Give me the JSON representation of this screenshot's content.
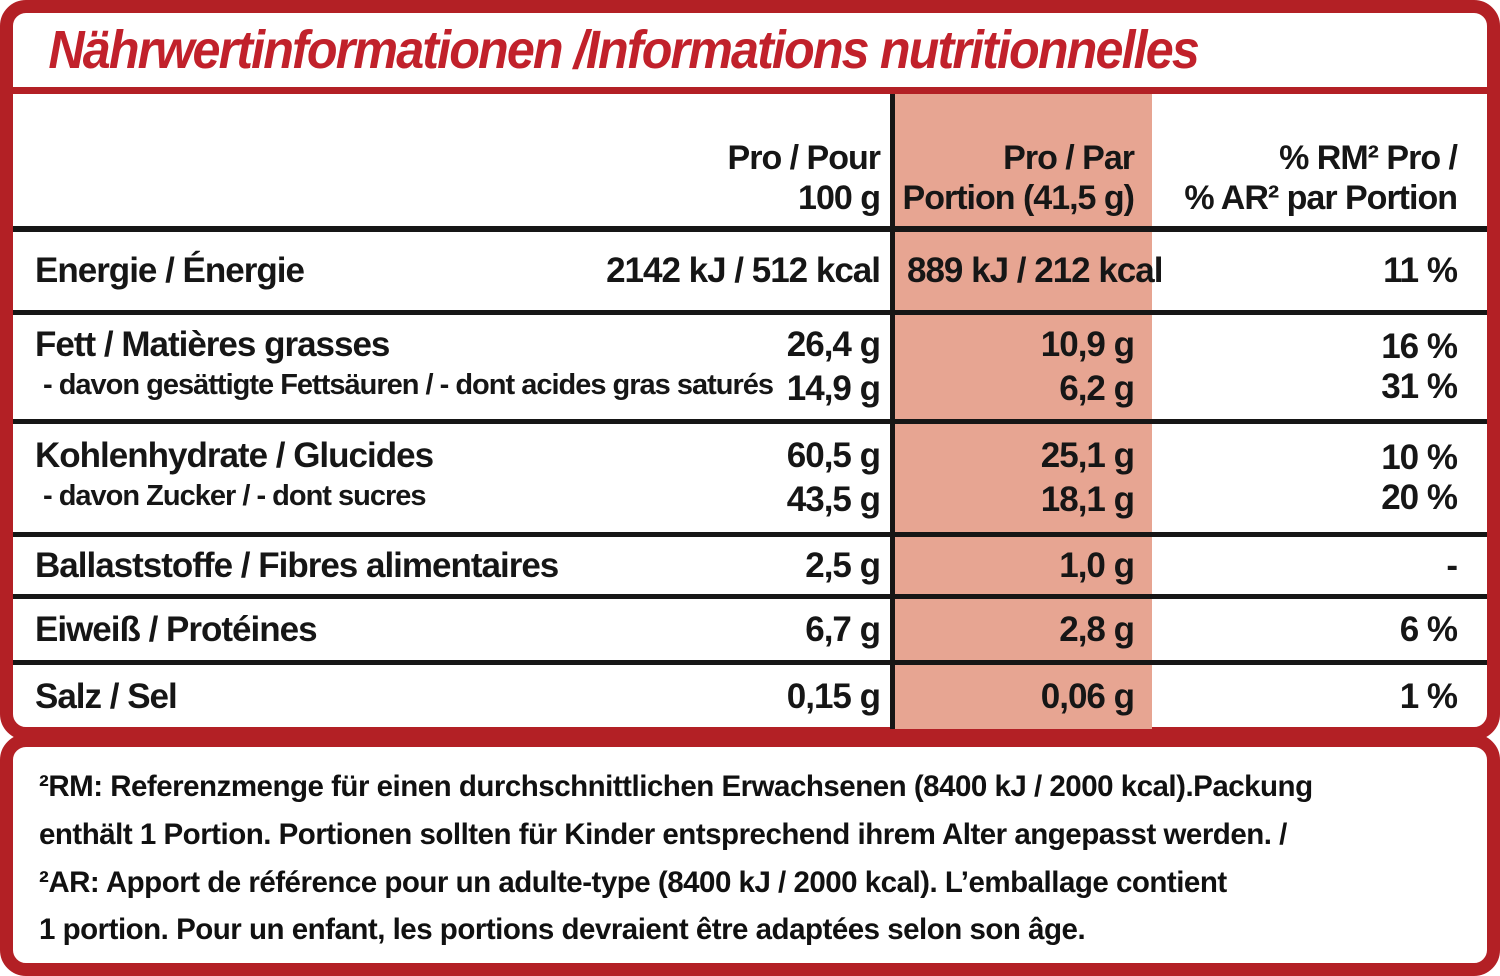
{
  "title": "Nährwertinformationen /Informations nutritionnelles",
  "colors": {
    "border_red": "#b32025",
    "title_red": "#c1212b",
    "portion_highlight": "#e7a592",
    "text_black": "#161616"
  },
  "table": {
    "col_headers": {
      "per100_line1": "Pro / Pour",
      "per100_line2": "100 g",
      "portion_line1": "Pro / Par",
      "portion_line2": "Portion (41,5 g)",
      "rm_line1": "% RM² Pro /",
      "rm_line2": "% AR² par Portion"
    },
    "rows": [
      {
        "label": "Energie / Énergie",
        "per100": "2142 kJ / 512 kcal",
        "portion": "889 kJ / 212 kcal",
        "rm": "11 %"
      },
      {
        "label": "Fett / Matières grasses",
        "per100": "26,4 g",
        "portion": "10,9 g",
        "rm": "16 %"
      },
      {
        "label": "- davon gesättigte Fettsäuren / - dont acides gras saturés",
        "per100": "14,9 g",
        "portion": "6,2 g",
        "rm": "31 %"
      },
      {
        "label": "Kohlenhydrate / Glucides",
        "per100": "60,5 g",
        "portion": "25,1 g",
        "rm": "10 %"
      },
      {
        "label": "- davon Zucker / - dont sucres",
        "per100": "43,5 g",
        "portion": "18,1 g",
        "rm": "20 %"
      },
      {
        "label": "Ballaststoffe / Fibres alimentaires",
        "per100": "2,5 g",
        "portion": "1,0 g",
        "rm": "-"
      },
      {
        "label": "Eiweiß / Protéines",
        "per100": "6,7 g",
        "portion": "2,8 g",
        "rm": "6 %"
      },
      {
        "label": "Salz / Sel",
        "per100": "0,15 g",
        "portion": "0,06 g",
        "rm": "1 %"
      }
    ]
  },
  "footnotes": {
    "line1": "²RM: Referenzmenge für einen durchschnittlichen Erwachsenen (8400 kJ / 2000 kcal).Packung",
    "line2": "enthält 1 Portion. Portionen sollten für Kinder entsprechend ihrem Alter angepasst werden. /",
    "line3": "²AR: Apport de référence pour un adulte-type (8400 kJ / 2000 kcal). L’emballage contient",
    "line4": "1 portion. Pour un enfant, les portions devraient être adaptées selon son âge."
  }
}
